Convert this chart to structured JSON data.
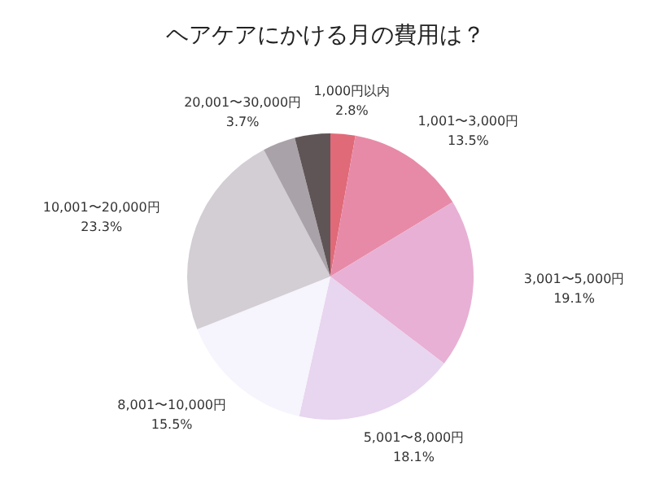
{
  "chart_data": {
    "type": "pie",
    "title": "ヘアケアにかける月の費用は？",
    "categories": [
      "1,000円以内",
      "1,001〜3,000円",
      "3,001〜5,000円",
      "5,001〜8,000円",
      "8,001〜10,000円",
      "10,001〜20,000円",
      "20,001〜30,000円",
      null
    ],
    "values": [
      2.8,
      13.5,
      19.1,
      18.1,
      15.5,
      23.3,
      3.7,
      4.0
    ],
    "colors": [
      "#e06a78",
      "#e78aa8",
      "#e8b0d4",
      "#e8d5ef",
      "#f6f4fc",
      "#d3cdd4",
      "#a9a3a9",
      "#5f5557"
    ],
    "value_labels": [
      "2.8%",
      "13.5%",
      "19.1%",
      "18.1%",
      "15.5%",
      "23.3%",
      "3.7%",
      null
    ]
  }
}
